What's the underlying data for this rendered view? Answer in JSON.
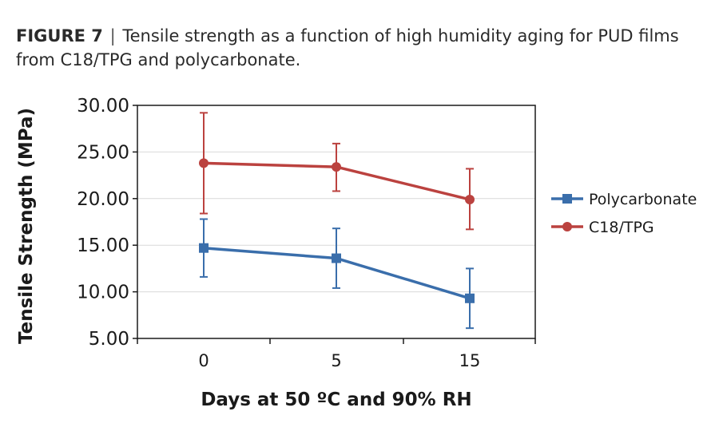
{
  "caption": {
    "label": "FIGURE 7",
    "separator": "|",
    "text": "Tensile strength as a function of high humidity aging for PUD films from C18/TPG and polycarbonate."
  },
  "chart_data": {
    "type": "line",
    "title": "",
    "xlabel": "Days at 50 ºC and 90% RH",
    "ylabel": "Tensile Strength (MPa)",
    "categories": [
      "0",
      "5",
      "15"
    ],
    "ylim": [
      5,
      30
    ],
    "yticks": [
      "5.00",
      "10.00",
      "15.00",
      "20.00",
      "25.00",
      "30.00"
    ],
    "grid": true,
    "legend_position": "right",
    "series": [
      {
        "name": "Polycarbonate",
        "color": "#3a6eab",
        "marker": "square",
        "values": [
          14.7,
          13.6,
          9.3
        ],
        "error_low": [
          11.6,
          10.4,
          6.1
        ],
        "error_high": [
          17.8,
          16.8,
          12.5
        ]
      },
      {
        "name": "C18/TPG",
        "color": "#bb423f",
        "marker": "circle",
        "values": [
          23.8,
          23.4,
          19.9
        ],
        "error_low": [
          18.4,
          20.8,
          16.7
        ],
        "error_high": [
          29.2,
          25.9,
          23.2
        ]
      }
    ]
  }
}
